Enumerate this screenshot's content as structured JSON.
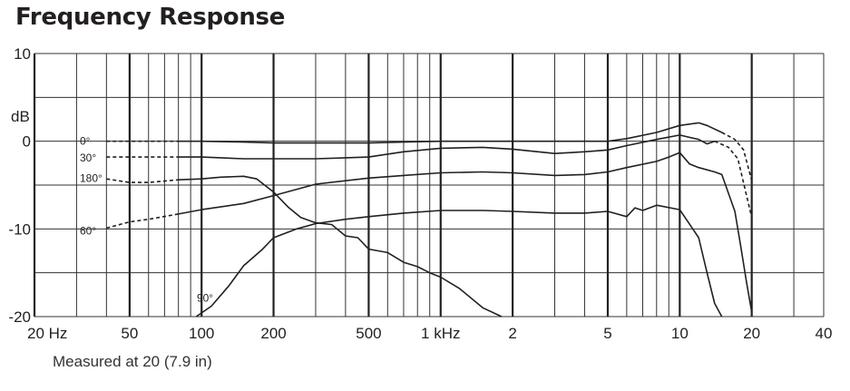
{
  "chart_data": {
    "type": "line",
    "title": "Frequency Response",
    "note": "Measured at 20 (7.9 in)",
    "x_scale": "log",
    "xlim": [
      20,
      40000
    ],
    "ylim": [
      -20,
      10
    ],
    "ylabel": "dB",
    "y_ticks": [
      {
        "value": 10,
        "label": "10"
      },
      {
        "value": 0,
        "label": "0"
      },
      {
        "value": -10,
        "label": "-10"
      },
      {
        "value": -20,
        "label": "-20"
      }
    ],
    "y_grid": [
      10,
      5,
      0,
      -5,
      -10,
      -15,
      -20
    ],
    "x_ticks": [
      {
        "value": 20,
        "label": "20 Hz"
      },
      {
        "value": 50,
        "label": "50"
      },
      {
        "value": 100,
        "label": "100"
      },
      {
        "value": 200,
        "label": "200"
      },
      {
        "value": 500,
        "label": "500"
      },
      {
        "value": 1000,
        "label": "1 kHz"
      },
      {
        "value": 2000,
        "label": "2"
      },
      {
        "value": 5000,
        "label": "5"
      },
      {
        "value": 10000,
        "label": "10"
      },
      {
        "value": 20000,
        "label": "20"
      },
      {
        "value": 40000,
        "label": "40"
      }
    ],
    "x_grid_major": [
      20,
      50,
      100,
      200,
      500,
      1000,
      2000,
      5000,
      10000,
      20000
    ],
    "x_grid_minor": [
      30,
      40,
      60,
      70,
      80,
      90,
      300,
      400,
      600,
      700,
      800,
      900,
      3000,
      4000,
      6000,
      7000,
      8000,
      9000,
      30000,
      40000
    ],
    "grid": true,
    "series": [
      {
        "name": "0°",
        "label_at": [
          20,
          0
        ],
        "dashed": [
          [
            40,
            0
          ],
          [
            80,
            0
          ]
        ],
        "solid": [
          [
            80,
            0
          ],
          [
            100,
            0
          ],
          [
            150,
            -0.1
          ],
          [
            200,
            -0.2
          ],
          [
            300,
            -0.2
          ],
          [
            500,
            -0.2
          ],
          [
            700,
            -0.1
          ],
          [
            1000,
            0
          ],
          [
            1500,
            0
          ],
          [
            2000,
            0
          ],
          [
            3000,
            0
          ],
          [
            5000,
            0
          ],
          [
            6000,
            0.3
          ],
          [
            8000,
            1
          ],
          [
            10000,
            1.8
          ],
          [
            12000,
            2.1
          ],
          [
            13000,
            1.8
          ],
          [
            15000,
            1
          ]
        ],
        "dashed_end": [
          [
            15000,
            1
          ],
          [
            17000,
            0.2
          ],
          [
            18500,
            -1
          ],
          [
            20000,
            -4.5
          ]
        ]
      },
      {
        "name": "30°",
        "label_at": [
          25,
          -1.9
        ],
        "dashed": [
          [
            40,
            -1.8
          ],
          [
            80,
            -1.8
          ]
        ],
        "solid": [
          [
            80,
            -1.8
          ],
          [
            100,
            -1.8
          ],
          [
            150,
            -2
          ],
          [
            200,
            -2
          ],
          [
            300,
            -2
          ],
          [
            500,
            -1.8
          ],
          [
            700,
            -1.2
          ],
          [
            1000,
            -0.8
          ],
          [
            1500,
            -0.7
          ],
          [
            2000,
            -0.9
          ],
          [
            3000,
            -1.4
          ],
          [
            4000,
            -1.2
          ],
          [
            5000,
            -1
          ],
          [
            6000,
            -0.5
          ],
          [
            8000,
            0.2
          ],
          [
            10000,
            0.7
          ],
          [
            12000,
            0.2
          ],
          [
            13000,
            -0.3
          ],
          [
            14000,
            0
          ]
        ],
        "dashed_end": [
          [
            14000,
            0
          ],
          [
            16000,
            -0.7
          ],
          [
            17500,
            -2
          ],
          [
            20000,
            -8.7
          ]
        ]
      },
      {
        "name": "180°",
        "label_at": [
          25,
          -4.2
        ],
        "dashed": [
          [
            40,
            -4.3
          ],
          [
            50,
            -4.7
          ],
          [
            60,
            -4.7
          ],
          [
            80,
            -4.4
          ]
        ],
        "solid": [
          [
            80,
            -4.4
          ],
          [
            100,
            -4.3
          ],
          [
            120,
            -4.1
          ],
          [
            150,
            -4
          ],
          [
            170,
            -4.3
          ],
          [
            200,
            -5.8
          ],
          [
            230,
            -7.5
          ],
          [
            260,
            -8.7
          ],
          [
            300,
            -9.3
          ],
          [
            350,
            -9.5
          ],
          [
            400,
            -10.8
          ],
          [
            450,
            -11
          ],
          [
            500,
            -12.3
          ],
          [
            600,
            -12.7
          ],
          [
            700,
            -13.8
          ],
          [
            800,
            -14.3
          ],
          [
            900,
            -15
          ],
          [
            1000,
            -15.5
          ],
          [
            1200,
            -16.8
          ],
          [
            1500,
            -19
          ],
          [
            1800,
            -20
          ]
        ]
      },
      {
        "name": "60°",
        "label_at": [
          25,
          -10.2
        ],
        "dashed": [
          [
            40,
            -9.9
          ],
          [
            50,
            -9.2
          ],
          [
            60,
            -8.9
          ],
          [
            80,
            -8.3
          ]
        ],
        "solid": [
          [
            80,
            -8.3
          ],
          [
            100,
            -7.8
          ],
          [
            150,
            -7.1
          ],
          [
            200,
            -6.2
          ],
          [
            300,
            -4.9
          ],
          [
            500,
            -4.2
          ],
          [
            700,
            -3.9
          ],
          [
            1000,
            -3.6
          ],
          [
            1500,
            -3.5
          ],
          [
            2000,
            -3.6
          ],
          [
            3000,
            -3.9
          ],
          [
            4000,
            -3.8
          ],
          [
            5000,
            -3.5
          ],
          [
            6000,
            -3
          ],
          [
            8000,
            -2.3
          ],
          [
            9000,
            -1.8
          ],
          [
            10000,
            -1.3
          ],
          [
            11000,
            -2.6
          ],
          [
            12000,
            -3
          ],
          [
            14000,
            -3.5
          ],
          [
            15000,
            -3.8
          ],
          [
            17000,
            -8
          ],
          [
            18000,
            -12
          ],
          [
            19000,
            -16
          ],
          [
            20000,
            -19.5
          ]
        ]
      },
      {
        "name": "90°",
        "label_at": [
          86,
          -18.3
        ],
        "solid": [
          [
            95,
            -20
          ],
          [
            110,
            -18.8
          ],
          [
            130,
            -16.5
          ],
          [
            150,
            -14.2
          ],
          [
            180,
            -12.3
          ],
          [
            200,
            -11
          ],
          [
            250,
            -10
          ],
          [
            300,
            -9.4
          ],
          [
            400,
            -8.9
          ],
          [
            500,
            -8.6
          ],
          [
            700,
            -8.2
          ],
          [
            1000,
            -7.9
          ],
          [
            1500,
            -7.9
          ],
          [
            2000,
            -8
          ],
          [
            3000,
            -8.2
          ],
          [
            4000,
            -8.2
          ],
          [
            5000,
            -8
          ],
          [
            6000,
            -8.6
          ],
          [
            6500,
            -7.6
          ],
          [
            7000,
            -7.9
          ],
          [
            8000,
            -7.3
          ],
          [
            10000,
            -7.8
          ],
          [
            12000,
            -11
          ],
          [
            13000,
            -15
          ],
          [
            14000,
            -18.5
          ],
          [
            15000,
            -20
          ]
        ]
      }
    ]
  }
}
